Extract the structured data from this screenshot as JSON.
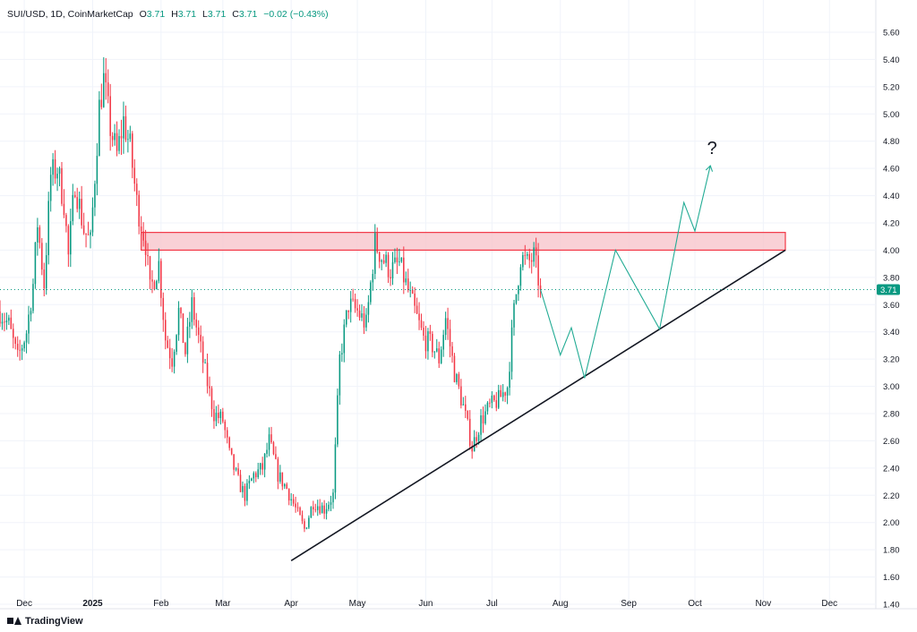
{
  "header": {
    "symbol": "SUI/USD, 1D, CoinMarketCap",
    "o_label": "O",
    "o_value": "3.71",
    "h_label": "H",
    "h_value": "3.71",
    "l_label": "L",
    "l_value": "3.71",
    "c_label": "C",
    "c_value": "3.71",
    "change": "−0.02 (−0.43%)"
  },
  "brand": "TradingView",
  "colors": {
    "up": "#089981",
    "down": "#f23645",
    "zone_fill": "#f8c6cc",
    "zone_border": "#f23645",
    "trendline": "#131722",
    "projection": "#22ab94"
  },
  "chart_data": {
    "type": "candlestick",
    "title": "",
    "xlabel": "",
    "ylabel": "",
    "ylim": [
      1.4,
      5.6
    ],
    "y_ticks": [
      "5.60",
      "5.40",
      "5.20",
      "5.00",
      "4.80",
      "4.60",
      "4.40",
      "4.20",
      "4.00",
      "3.80",
      "3.60",
      "3.40",
      "3.20",
      "3.00",
      "2.80",
      "2.60",
      "2.40",
      "2.20",
      "2.00",
      "1.80",
      "1.60",
      "1.40"
    ],
    "x_ticks": [
      {
        "label": "Dec",
        "date": "2024-12-01"
      },
      {
        "label": "2025",
        "date": "2025-01-01",
        "bold": true
      },
      {
        "label": "Feb",
        "date": "2025-02-01"
      },
      {
        "label": "Mar",
        "date": "2025-03-01"
      },
      {
        "label": "Apr",
        "date": "2025-04-01"
      },
      {
        "label": "May",
        "date": "2025-05-01"
      },
      {
        "label": "Jun",
        "date": "2025-06-01"
      },
      {
        "label": "Jul",
        "date": "2025-07-01"
      },
      {
        "label": "Aug",
        "date": "2025-08-01"
      },
      {
        "label": "Sep",
        "date": "2025-09-01"
      },
      {
        "label": "Oct",
        "date": "2025-10-01"
      },
      {
        "label": "Nov",
        "date": "2025-11-01"
      },
      {
        "label": "Dec",
        "date": "2025-12-01"
      }
    ],
    "x_range": [
      "2024-11-20",
      "2025-12-22"
    ],
    "price_path": [
      [
        "2024-11-20",
        3.55
      ],
      [
        "2024-11-24",
        3.45
      ],
      [
        "2024-11-28",
        3.2
      ],
      [
        "2024-12-02",
        3.4
      ],
      [
        "2024-12-05",
        3.75
      ],
      [
        "2024-12-07",
        4.2
      ],
      [
        "2024-12-10",
        3.75
      ],
      [
        "2024-12-13",
        4.55
      ],
      [
        "2024-12-16",
        4.6
      ],
      [
        "2024-12-19",
        4.35
      ],
      [
        "2024-12-21",
        3.95
      ],
      [
        "2024-12-24",
        4.5
      ],
      [
        "2024-12-28",
        4.15
      ],
      [
        "2024-12-31",
        4.05
      ],
      [
        "2025-01-04",
        5.05
      ],
      [
        "2025-01-06",
        5.25
      ],
      [
        "2025-01-09",
        4.9
      ],
      [
        "2025-01-12",
        4.7
      ],
      [
        "2025-01-15",
        4.95
      ],
      [
        "2025-01-18",
        4.75
      ],
      [
        "2025-01-21",
        4.35
      ],
      [
        "2025-01-25",
        4.05
      ],
      [
        "2025-01-27",
        3.7
      ],
      [
        "2025-01-31",
        3.9
      ],
      [
        "2025-02-03",
        3.35
      ],
      [
        "2025-02-06",
        3.2
      ],
      [
        "2025-02-09",
        3.55
      ],
      [
        "2025-02-12",
        3.25
      ],
      [
        "2025-02-15",
        3.6
      ],
      [
        "2025-02-18",
        3.35
      ],
      [
        "2025-02-21",
        3.1
      ],
      [
        "2025-02-25",
        2.8
      ],
      [
        "2025-03-01",
        2.75
      ],
      [
        "2025-03-04",
        2.5
      ],
      [
        "2025-03-08",
        2.3
      ],
      [
        "2025-03-11",
        2.2
      ],
      [
        "2025-03-15",
        2.35
      ],
      [
        "2025-03-19",
        2.4
      ],
      [
        "2025-03-22",
        2.6
      ],
      [
        "2025-03-26",
        2.35
      ],
      [
        "2025-03-30",
        2.25
      ],
      [
        "2025-04-03",
        2.1
      ],
      [
        "2025-04-07",
        1.95
      ],
      [
        "2025-04-11",
        2.15
      ],
      [
        "2025-04-16",
        2.1
      ],
      [
        "2025-04-20",
        2.2
      ],
      [
        "2025-04-23",
        3.2
      ],
      [
        "2025-04-27",
        3.6
      ],
      [
        "2025-05-01",
        3.55
      ],
      [
        "2025-05-05",
        3.45
      ],
      [
        "2025-05-09",
        4.05
      ],
      [
        "2025-05-12",
        3.95
      ],
      [
        "2025-05-16",
        3.85
      ],
      [
        "2025-05-20",
        3.9
      ],
      [
        "2025-05-24",
        3.7
      ],
      [
        "2025-05-27",
        3.55
      ],
      [
        "2025-05-31",
        3.35
      ],
      [
        "2025-06-04",
        3.3
      ],
      [
        "2025-06-07",
        3.2
      ],
      [
        "2025-06-10",
        3.5
      ],
      [
        "2025-06-14",
        3.1
      ],
      [
        "2025-06-18",
        2.85
      ],
      [
        "2025-06-22",
        2.55
      ],
      [
        "2025-06-26",
        2.75
      ],
      [
        "2025-06-30",
        2.85
      ],
      [
        "2025-07-04",
        2.9
      ],
      [
        "2025-07-08",
        3.0
      ],
      [
        "2025-07-11",
        3.55
      ],
      [
        "2025-07-14",
        3.95
      ],
      [
        "2025-07-17",
        3.9
      ],
      [
        "2025-07-20",
        3.95
      ],
      [
        "2025-07-23",
        3.71
      ]
    ],
    "last_price": 3.71,
    "last_price_label": "3.71",
    "resistance_zone": {
      "low": 4.0,
      "high": 4.13,
      "from": "2025-01-23",
      "to": "2025-11-11"
    },
    "trendline": [
      [
        "2025-04-01",
        1.72
      ],
      [
        "2025-11-11",
        4.0
      ]
    ],
    "projection": [
      [
        "2025-07-23",
        3.71
      ],
      [
        "2025-08-01",
        3.23
      ],
      [
        "2025-08-06",
        3.43
      ],
      [
        "2025-08-12",
        3.06
      ],
      [
        "2025-08-26",
        4.0
      ],
      [
        "2025-09-15",
        3.42
      ],
      [
        "2025-09-26",
        4.35
      ],
      [
        "2025-10-01",
        4.14
      ],
      [
        "2025-10-08",
        4.62
      ]
    ],
    "annotation": {
      "text": "?",
      "date": "2025-10-08",
      "value": 4.68
    }
  }
}
